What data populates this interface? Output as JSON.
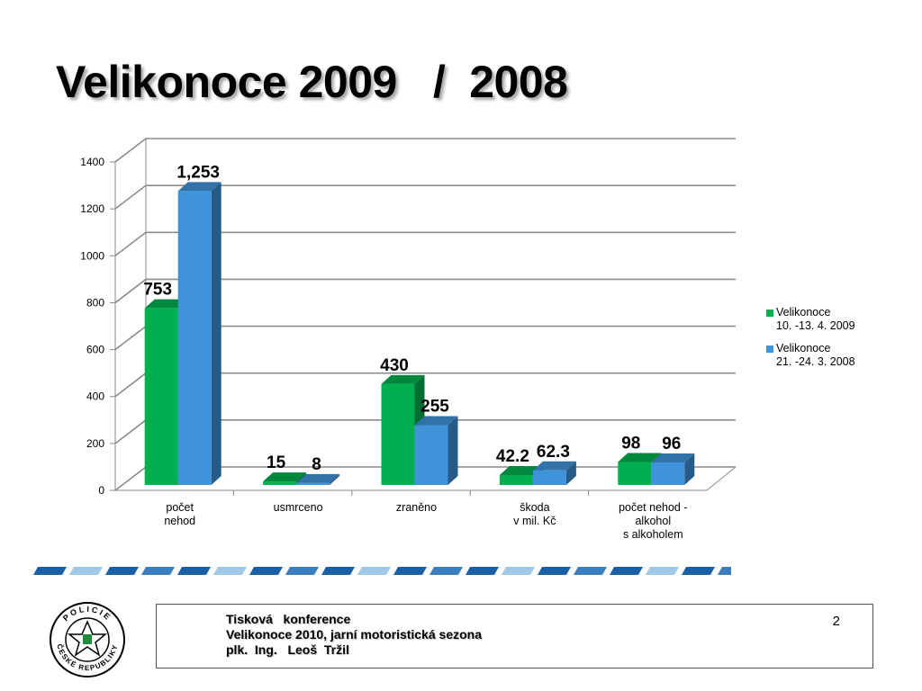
{
  "slide": {
    "title": "Velikonoce 2009   /  2008"
  },
  "chart_data": {
    "type": "bar",
    "categories": [
      "počet\nnehod",
      "usmrceno",
      "zraněno",
      "škoda\nv mil. Kč",
      "počet nehod -\nalkohol\ns alkoholem"
    ],
    "series": [
      {
        "name": "Velikonoce\n10. -13. 4. 2009",
        "values": [
          753,
          15,
          430,
          42.2,
          98
        ],
        "labels": [
          "753",
          "15",
          "430",
          "42.2",
          "98"
        ],
        "color": "#00b050"
      },
      {
        "name": "Velikonoce\n21. -24. 3. 2008",
        "values": [
          1253,
          8,
          255,
          62.3,
          96
        ],
        "labels": [
          "1,253",
          "8",
          "255",
          "62.3",
          "96"
        ],
        "color": "#3f93d9"
      }
    ],
    "yticks": [
      "0",
      "200",
      "400",
      "600",
      "800",
      "1000",
      "1200",
      "1400"
    ],
    "ylim": [
      0,
      1400
    ],
    "grid": true,
    "legend_position": "right",
    "style": "3d-clustered-column"
  },
  "footer": {
    "line1": "Tisková   konference",
    "line2": "Velikonoce 2010, jarní motoristická sezona",
    "line3": "plk.  Ing.   Leoš  Tržil",
    "page_number": "2"
  },
  "logo": {
    "icon": "police-czech-republic-seal",
    "text": "POLICIE ČESKÉ REPUBLIKY"
  }
}
